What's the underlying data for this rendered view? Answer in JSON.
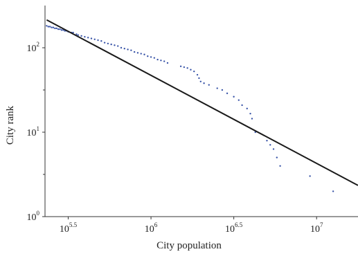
{
  "chart_data": {
    "type": "scatter",
    "title": "",
    "xlabel": "City population",
    "ylabel": "City rank",
    "x_scale": "log10",
    "y_scale": "log10",
    "xlim": [
      5.36,
      7.25
    ],
    "ylim": [
      0,
      2.5
    ],
    "x_ticks": [
      {
        "value": 5.5,
        "base": "10",
        "exp": "5.5"
      },
      {
        "value": 6.0,
        "base": "10",
        "exp": "6"
      },
      {
        "value": 6.5,
        "base": "10",
        "exp": "6.5"
      },
      {
        "value": 7.0,
        "base": "10",
        "exp": "7"
      }
    ],
    "y_ticks": [
      {
        "value": 0,
        "base": "10",
        "exp": "0"
      },
      {
        "value": 1,
        "base": "10",
        "exp": "1"
      },
      {
        "value": 2,
        "base": "10",
        "exp": "2"
      }
    ],
    "grid": false,
    "series": [
      {
        "kind": "points",
        "color": "#3a55a8",
        "points": [
          [
            5.37,
            2.26
          ],
          [
            5.38,
            2.25
          ],
          [
            5.39,
            2.25
          ],
          [
            5.4,
            2.24
          ],
          [
            5.41,
            2.24
          ],
          [
            5.42,
            2.23
          ],
          [
            5.43,
            2.23
          ],
          [
            5.44,
            2.22
          ],
          [
            5.45,
            2.22
          ],
          [
            5.46,
            2.21
          ],
          [
            5.47,
            2.21
          ],
          [
            5.48,
            2.2
          ],
          [
            5.49,
            2.2
          ],
          [
            5.5,
            2.19
          ],
          [
            5.52,
            2.18
          ],
          [
            5.53,
            2.18
          ],
          [
            5.55,
            2.16
          ],
          [
            5.56,
            2.15
          ],
          [
            5.58,
            2.14
          ],
          [
            5.6,
            2.13
          ],
          [
            5.62,
            2.12
          ],
          [
            5.64,
            2.11
          ],
          [
            5.66,
            2.1
          ],
          [
            5.68,
            2.09
          ],
          [
            5.7,
            2.08
          ],
          [
            5.72,
            2.06
          ],
          [
            5.74,
            2.05
          ],
          [
            5.76,
            2.04
          ],
          [
            5.78,
            2.03
          ],
          [
            5.8,
            2.02
          ],
          [
            5.82,
            2.0
          ],
          [
            5.84,
            1.99
          ],
          [
            5.86,
            1.98
          ],
          [
            5.88,
            1.97
          ],
          [
            5.9,
            1.95
          ],
          [
            5.92,
            1.94
          ],
          [
            5.94,
            1.93
          ],
          [
            5.96,
            1.92
          ],
          [
            5.98,
            1.9
          ],
          [
            6.0,
            1.89
          ],
          [
            6.02,
            1.88
          ],
          [
            6.04,
            1.86
          ],
          [
            6.06,
            1.85
          ],
          [
            6.08,
            1.84
          ],
          [
            6.1,
            1.82
          ],
          [
            6.18,
            1.78
          ],
          [
            6.2,
            1.77
          ],
          [
            6.22,
            1.76
          ],
          [
            6.24,
            1.74
          ],
          [
            6.26,
            1.72
          ],
          [
            6.28,
            1.68
          ],
          [
            6.29,
            1.64
          ],
          [
            6.3,
            1.6
          ],
          [
            6.32,
            1.58
          ],
          [
            6.35,
            1.56
          ],
          [
            6.4,
            1.52
          ],
          [
            6.43,
            1.5
          ],
          [
            6.46,
            1.46
          ],
          [
            6.5,
            1.42
          ],
          [
            6.53,
            1.38
          ],
          [
            6.55,
            1.32
          ],
          [
            6.58,
            1.28
          ],
          [
            6.6,
            1.22
          ],
          [
            6.61,
            1.16
          ],
          [
            6.63,
            1.0
          ],
          [
            6.7,
            0.9
          ],
          [
            6.72,
            0.85
          ],
          [
            6.74,
            0.8
          ],
          [
            6.76,
            0.7
          ],
          [
            6.78,
            0.6
          ],
          [
            6.96,
            0.48
          ],
          [
            7.1,
            0.3
          ]
        ]
      },
      {
        "kind": "fit-line",
        "color": "#1a1a1a",
        "from": [
          5.37,
          2.33
        ],
        "to": [
          7.25,
          0.37
        ]
      }
    ]
  }
}
